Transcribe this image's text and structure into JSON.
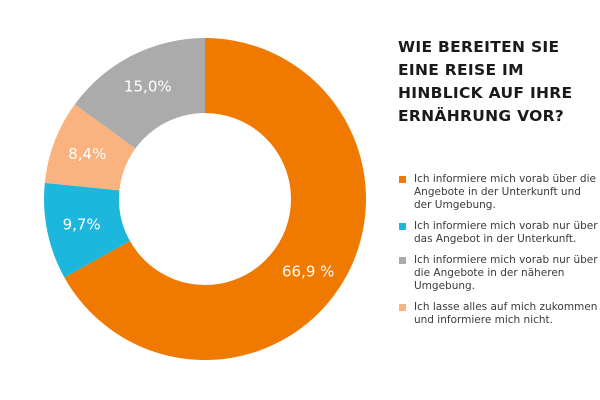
{
  "chart_data": {
    "type": "pie",
    "variant": "donut",
    "title": "WIE BEREITEN SIE EINE REISE IM HINBLICK AUF IHRE ERNÄHRUNG VOR?",
    "legend_position": "right",
    "slices": [
      {
        "name": "Ich informiere mich vorab über die Angebote in der Unterkunft und der Umgebung.",
        "value": 66.9,
        "label": "66,9 %",
        "color": "#F07A00"
      },
      {
        "name": "Ich informiere mich vorab nur über das Angebot in der Unterkunft.",
        "value": 9.7,
        "label": "9,7%",
        "color": "#1DB6DD"
      },
      {
        "name": "Ich lasse alles auf mich zukommen und informiere mich nicht.",
        "value": 8.4,
        "label": "8,4%",
        "color": "#FAB27E"
      },
      {
        "name": "Ich informiere mich vorab nur über die Angebote in der näheren Umgebung.",
        "value": 15.0,
        "label": "15,0%",
        "color": "#ABABAB"
      }
    ],
    "legend": [
      {
        "text": "Ich informiere mich vorab über die Angebote in der Unterkunft und der Umgebung.",
        "color": "#F07A00"
      },
      {
        "text": "Ich informiere mich vorab nur über das Angebot in der Unterkunft.",
        "color": "#1DB6DD"
      },
      {
        "text": "Ich informiere mich vorab nur über die Angebote in der näheren Umgebung.",
        "color": "#ABABAB"
      },
      {
        "text": "Ich lasse alles auf mich zukommen und informiere mich nicht.",
        "color": "#FAB27E"
      }
    ]
  }
}
